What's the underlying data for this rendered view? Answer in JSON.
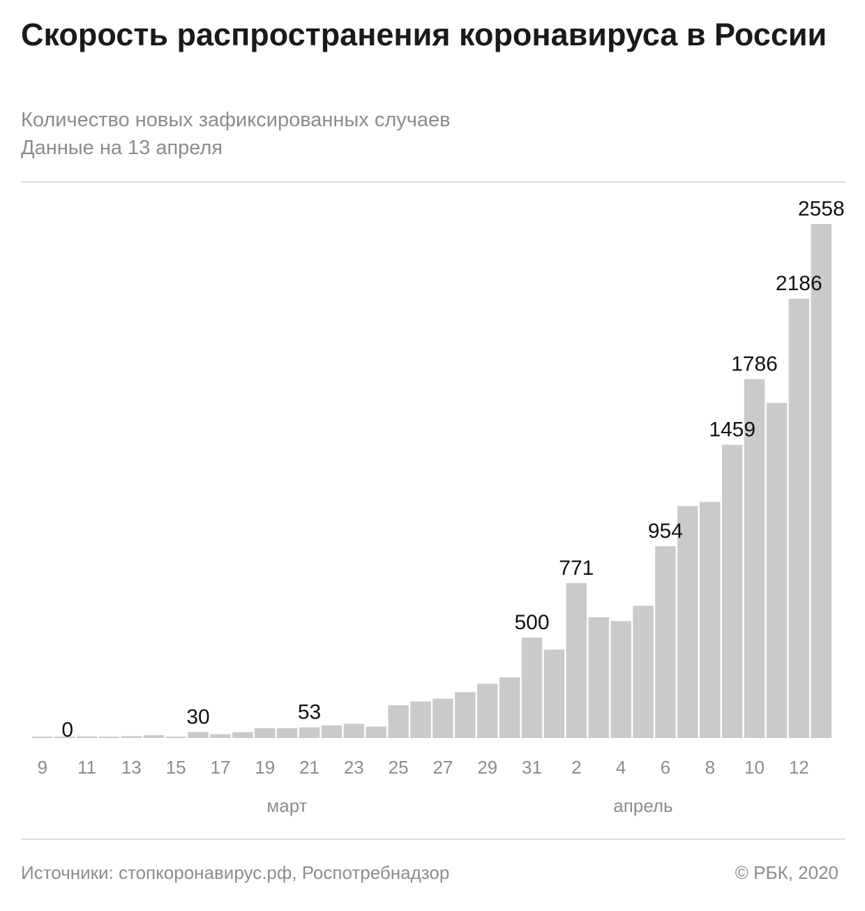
{
  "header": {
    "title": "Скорость распространения коронавируса в России",
    "subtitle_line1": "Количество новых зафиксированных случаев",
    "subtitle_line2": "Данные на 13 апреля"
  },
  "footer": {
    "source": "Источники: стопкоронавирус.рф, Роспотребнадзор",
    "copyright": "© РБК, 2020"
  },
  "chart_data": {
    "type": "bar",
    "title": "Скорость распространения коронавируса в России",
    "ylim": [
      0,
      2558
    ],
    "grid": false,
    "bar_color": "#cacaca",
    "months": [
      {
        "label": "март",
        "center_day": "21 марта"
      },
      {
        "label": "апрель",
        "center_day": "6 апреля"
      }
    ],
    "x": [
      "9 марта",
      "10 марта",
      "11 марта",
      "12 марта",
      "13 марта",
      "14 марта",
      "15 марта",
      "16 марта",
      "17 марта",
      "18 марта",
      "19 марта",
      "20 марта",
      "21 марта",
      "22 марта",
      "23 марта",
      "24 марта",
      "25 марта",
      "26 марта",
      "27 марта",
      "28 марта",
      "29 марта",
      "30 марта",
      "31 марта",
      "1 апреля",
      "2 апреля",
      "3 апреля",
      "4 апреля",
      "5 апреля",
      "6 апреля",
      "7 апреля",
      "8 апреля",
      "9 апреля",
      "10 апреля",
      "11 апреля",
      "12 апреля",
      "13 апреля"
    ],
    "tick_labels": [
      "9",
      "",
      "11",
      "",
      "13",
      "",
      "15",
      "",
      "17",
      "",
      "19",
      "",
      "21",
      "",
      "23",
      "",
      "25",
      "",
      "27",
      "",
      "29",
      "",
      "31",
      "",
      "2",
      "",
      "4",
      "",
      "6",
      "",
      "8",
      "",
      "10",
      "",
      "12",
      ""
    ],
    "values": [
      3,
      0,
      8,
      6,
      9,
      14,
      4,
      30,
      19,
      29,
      49,
      49,
      53,
      63,
      71,
      57,
      163,
      182,
      196,
      228,
      270,
      302,
      500,
      440,
      771,
      601,
      582,
      658,
      954,
      1154,
      1175,
      1459,
      1786,
      1667,
      2186,
      2558
    ],
    "data_labels": {
      "1": "0",
      "7": "30",
      "12": "53",
      "22": "500",
      "24": "771",
      "28": "954",
      "31": "1459",
      "32": "1786",
      "34": "2186",
      "35": "2558"
    }
  }
}
